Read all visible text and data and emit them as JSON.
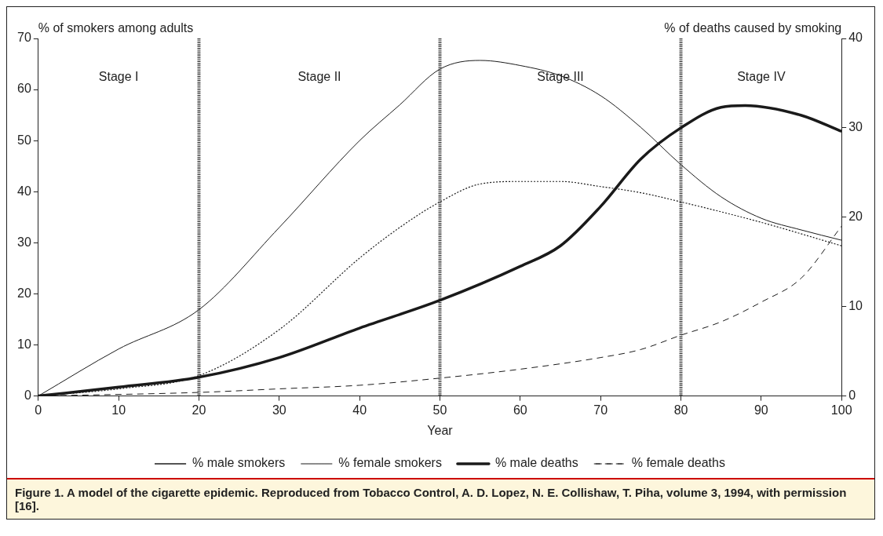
{
  "chart_data": {
    "type": "line",
    "xlabel": "Year",
    "ylabel": "% of smokers among adults",
    "y2label": "% of deaths caused by smoking",
    "xlim": [
      0,
      100
    ],
    "xticks": [
      0,
      10,
      20,
      30,
      40,
      50,
      60,
      70,
      80,
      90,
      100
    ],
    "ylim": [
      0,
      70
    ],
    "yticks": [
      0,
      10,
      20,
      30,
      40,
      50,
      60,
      70
    ],
    "y2lim": [
      0,
      40
    ],
    "y2ticks": [
      0,
      10,
      20,
      30,
      40
    ],
    "grid": false,
    "legend": "bottom",
    "marker": "none",
    "series": [
      {
        "name": "% male smokers",
        "color": "#1a1a1a",
        "line_style": "solid",
        "x": [
          0,
          10,
          20,
          30,
          40,
          45,
          50,
          55,
          60,
          65,
          70,
          75,
          80,
          85,
          90,
          95,
          100
        ],
        "values": [
          0,
          9.2,
          16.9,
          33,
          50,
          57,
          64,
          65.7,
          64.7,
          62.7,
          58.8,
          52.6,
          45.3,
          39,
          34.8,
          32.5,
          30.5
        ]
      },
      {
        "name": "% female smokers",
        "color": "#1a1a1a",
        "line_style": "dotted",
        "x": [
          0,
          10,
          20,
          30,
          40,
          45,
          50,
          55,
          60,
          65,
          70,
          75,
          80,
          90,
          100
        ],
        "values": [
          0,
          1.4,
          4,
          13,
          27,
          33,
          38,
          41.5,
          42,
          42,
          41,
          39.8,
          38,
          34,
          29.4
        ]
      },
      {
        "name": "% male deaths",
        "color": "#1a1a1a",
        "line_style": "solid",
        "axis": "y2",
        "x": [
          0,
          10,
          20,
          30,
          40,
          50,
          60,
          65,
          70,
          75,
          80,
          85,
          88,
          95,
          100
        ],
        "values": [
          0,
          1,
          2.1,
          4.3,
          7.6,
          10.7,
          14.5,
          16.8,
          21.2,
          26.5,
          30,
          32.3,
          32.5,
          31.4,
          29.6
        ]
      },
      {
        "name": "% female deaths",
        "color": "#1a1a1a",
        "line_style": "dashed",
        "axis": "y2",
        "x": [
          0,
          20,
          30,
          40,
          50,
          60,
          70,
          75,
          80,
          85,
          90,
          95,
          100
        ],
        "values": [
          0,
          0.4,
          0.8,
          1.2,
          2,
          3,
          4.3,
          5.2,
          6.8,
          8.3,
          10.5,
          13.2,
          19
        ]
      }
    ],
    "ref_lines": [
      {
        "axis": "x",
        "value": 20
      },
      {
        "axis": "x",
        "value": 50
      },
      {
        "axis": "x",
        "value": 80
      }
    ],
    "annotations": [
      "Stage I",
      "Stage II",
      "Stage III",
      "Stage IV",
      "Figure 1. A model of the cigarette epidemic. Reproduced from Tobacco Control, A. D. Lopez, N. E. Collishaw, T. Piha, volume 3, 1994, with permission [16]."
    ]
  }
}
